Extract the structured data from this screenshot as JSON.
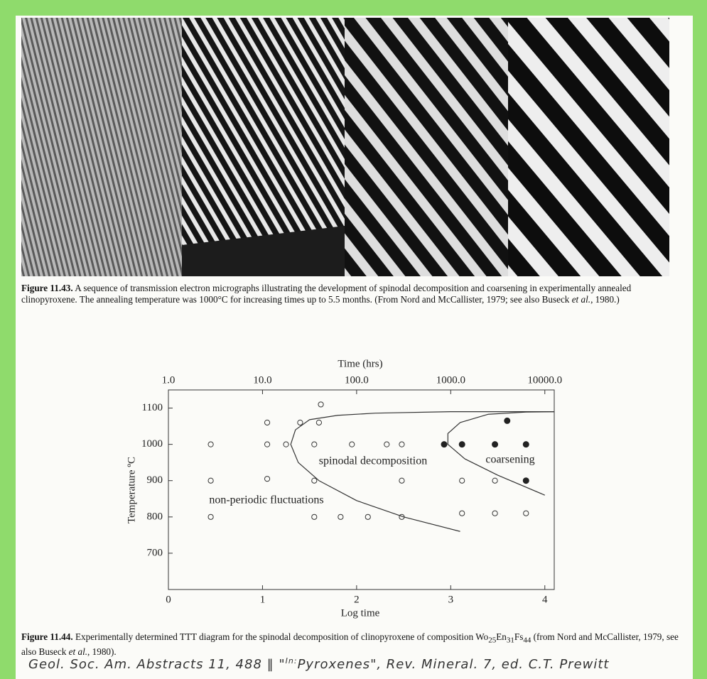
{
  "figure_11_43": {
    "label": "Figure 11.43.",
    "text": "A sequence of transmission electron micrographs illustrating the development of spinodal decomposition and coarsening in experimentally annealed clinopyroxene. The annealing temperature was 1000°C for increasing times up to 5.5 months. (From Nord and McCallister, 1979; see also Buseck ",
    "italic": "et al.",
    "end": ", 1980.)"
  },
  "chart_data": {
    "type": "scatter",
    "x2_label": "Time (hrs)",
    "xlabel": "Log time",
    "ylabel": "Temperature ºC",
    "xlim": [
      0,
      4.1
    ],
    "ylim": [
      600,
      1150
    ],
    "xticks": [
      0,
      1,
      2,
      3,
      4
    ],
    "yticks": [
      700,
      800,
      900,
      1000,
      1100
    ],
    "x2lim": [
      1,
      12589.25
    ],
    "x2scale": "log",
    "x2ticks": [
      {
        "value": 1,
        "label": "1.0"
      },
      {
        "value": 10,
        "label": "10.0"
      },
      {
        "value": 100,
        "label": "100.0"
      },
      {
        "value": 1000,
        "label": "1000.0"
      },
      {
        "value": 10000,
        "label": "10000.0"
      }
    ],
    "series": [
      {
        "color": "#333333",
        "marker": "open",
        "x": [
          0.45,
          0.45,
          0.45,
          1.05,
          1.05,
          1.05,
          1.25,
          1.4,
          1.55,
          1.55,
          1.55,
          1.6,
          1.62,
          1.83,
          1.95,
          2.12,
          2.32,
          2.48,
          2.48,
          2.48,
          3.12,
          3.12,
          3.47,
          3.47,
          3.8
        ],
        "values": [
          1000,
          900,
          800,
          1060,
          1000,
          905,
          1000,
          1060,
          1000,
          900,
          800,
          1060,
          1110,
          800,
          1000,
          800,
          1000,
          1000,
          900,
          800,
          900,
          810,
          900,
          810,
          810
        ]
      },
      {
        "color": "#222222",
        "marker": "filled",
        "x": [
          2.93,
          3.12,
          3.47,
          3.6,
          3.8,
          3.8
        ],
        "values": [
          1000,
          1000,
          1000,
          1065,
          1000,
          900
        ]
      }
    ],
    "curves": [
      {
        "x": [
          3.1,
          2.5,
          2.0,
          1.6,
          1.38,
          1.3,
          1.35,
          1.5,
          1.8,
          2.2,
          3.0,
          4.1
        ],
        "values": [
          760,
          800,
          845,
          900,
          950,
          1000,
          1040,
          1068,
          1080,
          1086,
          1090,
          1090
        ]
      },
      {
        "x": [
          4.0,
          3.5,
          3.15,
          2.97,
          2.97,
          3.1,
          3.4,
          3.8,
          4.1
        ],
        "values": [
          860,
          915,
          960,
          1000,
          1030,
          1060,
          1083,
          1089,
          1090
        ]
      }
    ],
    "annotations": [
      "spinodal decomposition",
      "coarsening",
      "non-periodic fluctuations"
    ]
  },
  "figure_11_44": {
    "label": "Figure 11.44.",
    "parts": [
      "Experimentally determined TTT diagram for the spinodal decomposition of clinopyroxene of composition Wo",
      "25",
      "En",
      "31",
      "Fs",
      "44",
      " (from Nord and McCallister, 1979, see also Buseck ",
      "et al.",
      ", 1980)."
    ]
  },
  "handwritten_note": {
    "left": "Geol. Soc. Am. Abstracts 11, 488  ‖  \"",
    "superscript": "In:",
    "right": "Pyroxenes\", Rev. Mineral. 7, ed. C.T. Prewitt"
  }
}
